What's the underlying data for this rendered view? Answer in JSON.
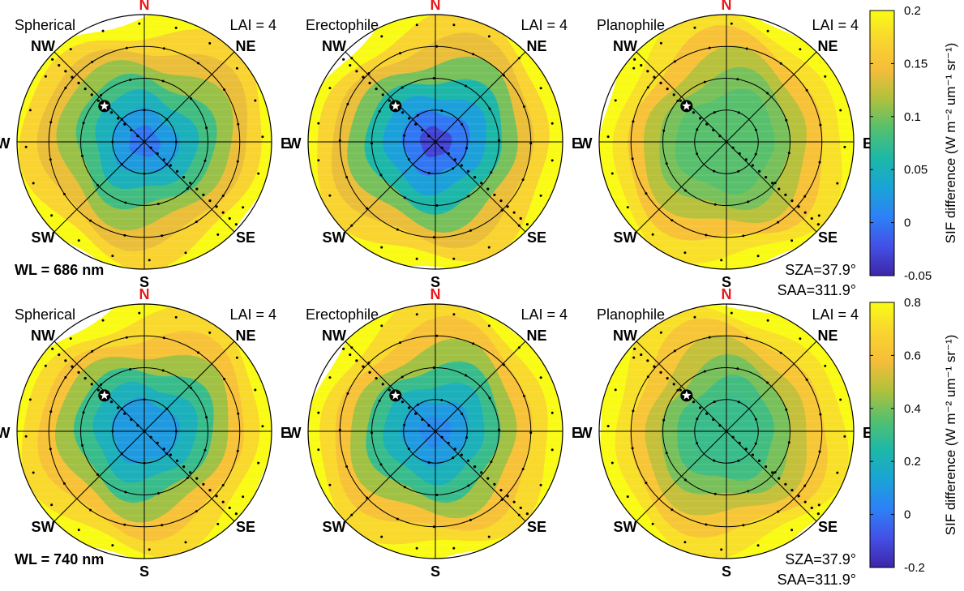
{
  "chart_data": {
    "type": "polar-heatmap",
    "compass": [
      "N",
      "NE",
      "E",
      "SE",
      "S",
      "SW",
      "W",
      "NW"
    ],
    "lai_label": "LAI = 4",
    "sun": {
      "sza_label": "SZA=37.9°",
      "saa_label": "SAA=311.9°",
      "sza": 37.9,
      "saa": 311.9
    },
    "rows": [
      {
        "wavelength_label": "WL = 686 nm",
        "colorbar": {
          "label": "SIF difference (W m⁻² um⁻¹ sr⁻¹)",
          "min": -0.05,
          "max": 0.2,
          "ticks": [
            -0.05,
            0,
            0.05,
            0.1,
            0.15,
            0.2
          ],
          "tick_labels": [
            "-0.05",
            "0",
            "0.05",
            "0.1",
            "0.15",
            "0.2"
          ]
        },
        "panels": [
          {
            "title": "Spherical",
            "center_value": 0.0,
            "edge_value": 0.2,
            "levels": [
              0.0,
              0.025,
              0.05,
              0.08,
              0.11,
              0.14,
              0.17,
              0.2
            ]
          },
          {
            "title": "Erectophile",
            "center_value": -0.03,
            "edge_value": 0.2,
            "levels": [
              -0.03,
              0.0,
              0.03,
              0.06,
              0.1,
              0.14,
              0.17,
              0.2
            ]
          },
          {
            "title": "Planophile",
            "center_value": 0.09,
            "edge_value": 0.2,
            "levels": [
              0.09,
              0.09,
              0.09,
              0.1,
              0.12,
              0.15,
              0.18,
              0.2
            ]
          }
        ]
      },
      {
        "wavelength_label": "WL = 740 nm",
        "colorbar": {
          "label": "SIF difference (W m⁻² um⁻¹ sr⁻¹)",
          "min": -0.2,
          "max": 0.8,
          "ticks": [
            -0.2,
            0,
            0.2,
            0.4,
            0.6,
            0.8
          ],
          "tick_labels": [
            "-0.2",
            "0",
            "0.2",
            "0.4",
            "0.6",
            "0.8"
          ]
        },
        "panels": [
          {
            "title": "Spherical",
            "center_value": 0.1,
            "edge_value": 0.8,
            "levels": [
              0.1,
              0.1,
              0.2,
              0.3,
              0.45,
              0.6,
              0.7,
              0.8
            ]
          },
          {
            "title": "Erectophile",
            "center_value": 0.05,
            "edge_value": 0.8,
            "levels": [
              0.05,
              0.1,
              0.2,
              0.3,
              0.45,
              0.6,
              0.7,
              0.8
            ]
          },
          {
            "title": "Planophile",
            "center_value": 0.3,
            "edge_value": 0.8,
            "levels": [
              0.3,
              0.3,
              0.32,
              0.4,
              0.5,
              0.62,
              0.72,
              0.8
            ]
          }
        ]
      }
    ],
    "colormap": "parula",
    "colormap_stops": [
      "#3E26A8",
      "#4350E6",
      "#2D81F6",
      "#19A4D6",
      "#1DB8A7",
      "#54C06F",
      "#AFC13C",
      "#F6BD3A",
      "#F9D52F",
      "#F9FB15"
    ]
  }
}
